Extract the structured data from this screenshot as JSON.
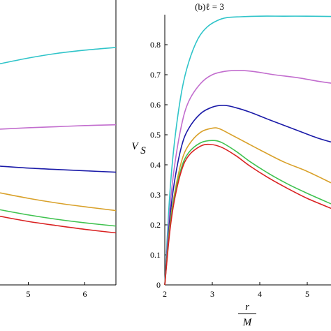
{
  "chart_data": [
    {
      "panel": "left",
      "type": "line",
      "title": "",
      "xlabel": "",
      "ylabel": "",
      "xlim": [
        4.5,
        6.55
      ],
      "ylim": [
        0,
        1
      ],
      "x_ticks": [
        5,
        6
      ],
      "grid": false,
      "series": [
        {
          "color": "#2fc4c9",
          "x": [
            4.5,
            5.0,
            5.5,
            6.0,
            6.55
          ],
          "y": [
            0.812,
            0.833,
            0.85,
            0.862,
            0.872
          ]
        },
        {
          "color": "#c26dce",
          "x": [
            4.5,
            5.0,
            5.5,
            6.0,
            6.55
          ],
          "y": [
            0.572,
            0.577,
            0.581,
            0.585,
            0.588
          ]
        },
        {
          "color": "#1a1aa8",
          "x": [
            4.5,
            5.0,
            5.5,
            6.0,
            6.55
          ],
          "y": [
            0.436,
            0.429,
            0.424,
            0.419,
            0.414
          ]
        },
        {
          "color": "#d9a12a",
          "x": [
            4.5,
            5.0,
            5.5,
            6.0,
            6.55
          ],
          "y": [
            0.338,
            0.318,
            0.301,
            0.287,
            0.273
          ]
        },
        {
          "color": "#3fc24f",
          "x": [
            4.5,
            5.0,
            5.5,
            6.0,
            6.55
          ],
          "y": [
            0.276,
            0.257,
            0.241,
            0.228,
            0.216
          ]
        },
        {
          "color": "#d92121",
          "x": [
            4.5,
            5.0,
            5.5,
            6.0,
            6.55
          ],
          "y": [
            0.252,
            0.233,
            0.218,
            0.204,
            0.191
          ]
        }
      ]
    },
    {
      "panel": "right",
      "type": "line",
      "title": "(b)ℓ = 3",
      "xlabel_num": "r",
      "xlabel_den": "M",
      "ylabel": "V",
      "ylabel_sub": "S",
      "xlim": [
        2,
        5.5
      ],
      "ylim": [
        0,
        0.9
      ],
      "x_ticks": [
        2,
        3,
        4,
        5
      ],
      "y_ticks": [
        0,
        0.1,
        0.2,
        0.3,
        0.4,
        0.5,
        0.6,
        0.7,
        0.8
      ],
      "y_tick_labels": [
        "0",
        "0.1",
        "0.2",
        "0.3",
        "0.4",
        "0.5",
        "0.6",
        "0.7",
        "0.8"
      ],
      "grid": false,
      "series": [
        {
          "color": "#2fc4c9",
          "x": [
            2.0,
            2.1,
            2.2,
            2.35,
            2.5,
            2.7,
            2.9,
            3.1,
            3.3,
            3.6,
            4.0,
            4.5,
            5.0,
            5.5
          ],
          "y": [
            0.0,
            0.29,
            0.47,
            0.64,
            0.74,
            0.82,
            0.86,
            0.88,
            0.89,
            0.893,
            0.895,
            0.895,
            0.895,
            0.894
          ]
        },
        {
          "color": "#c26dce",
          "x": [
            2.0,
            2.1,
            2.2,
            2.35,
            2.5,
            2.75,
            3.0,
            3.3,
            3.6,
            3.9,
            4.3,
            4.8,
            5.2,
            5.5
          ],
          "y": [
            0.0,
            0.24,
            0.39,
            0.53,
            0.61,
            0.67,
            0.7,
            0.712,
            0.714,
            0.71,
            0.7,
            0.69,
            0.679,
            0.672
          ]
        },
        {
          "color": "#1a1aa8",
          "x": [
            2.0,
            2.1,
            2.2,
            2.35,
            2.5,
            2.75,
            3.0,
            3.25,
            3.5,
            3.8,
            4.2,
            4.7,
            5.2,
            5.5
          ],
          "y": [
            0.0,
            0.21,
            0.34,
            0.46,
            0.52,
            0.57,
            0.592,
            0.598,
            0.59,
            0.575,
            0.55,
            0.52,
            0.49,
            0.476
          ]
        },
        {
          "color": "#d9a12a",
          "x": [
            2.0,
            2.1,
            2.2,
            2.35,
            2.5,
            2.75,
            3.0,
            3.15,
            3.4,
            3.7,
            4.0,
            4.5,
            5.0,
            5.5
          ],
          "y": [
            0.0,
            0.19,
            0.3,
            0.41,
            0.465,
            0.508,
            0.522,
            0.52,
            0.5,
            0.475,
            0.45,
            0.41,
            0.378,
            0.34
          ]
        },
        {
          "color": "#3fc24f",
          "x": [
            2.0,
            2.1,
            2.2,
            2.35,
            2.5,
            2.75,
            3.0,
            3.2,
            3.5,
            3.8,
            4.2,
            4.6,
            5.0,
            5.5
          ],
          "y": [
            0.0,
            0.18,
            0.29,
            0.39,
            0.44,
            0.473,
            0.481,
            0.474,
            0.445,
            0.41,
            0.37,
            0.335,
            0.305,
            0.27
          ]
        },
        {
          "color": "#d92121",
          "x": [
            2.0,
            2.1,
            2.2,
            2.35,
            2.5,
            2.75,
            2.95,
            3.2,
            3.5,
            3.8,
            4.2,
            4.6,
            5.0,
            5.5
          ],
          "y": [
            0.0,
            0.17,
            0.28,
            0.38,
            0.43,
            0.462,
            0.468,
            0.458,
            0.43,
            0.395,
            0.355,
            0.32,
            0.288,
            0.255
          ]
        }
      ]
    }
  ]
}
